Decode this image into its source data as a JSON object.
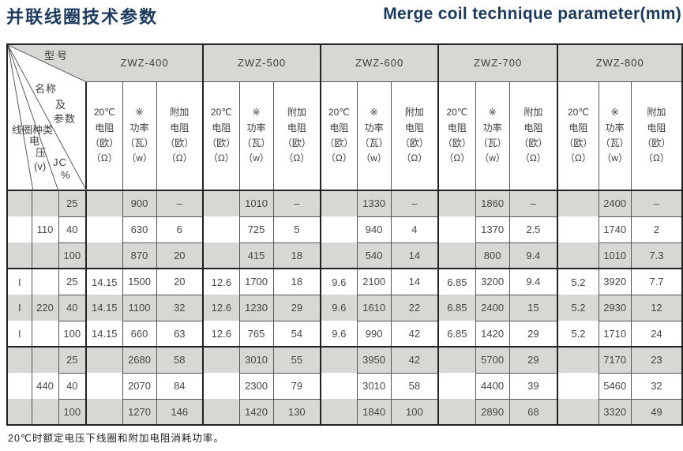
{
  "page": {
    "title_zh": "并联线圈技术参数",
    "title_en": "Merge coil technique parameter(mm)",
    "footnote": "20℃时额定电压下线圈和附加电阻消耗功率。"
  },
  "table": {
    "corner": {
      "model_label": "型号",
      "name_l1": "名称",
      "name_l2": "及",
      "name_l3": "参数",
      "coil_type_label": "线圈种类",
      "voltage_char1": "电",
      "voltage_char2": "压",
      "voltage_unit": "(v)",
      "jc_label": "JC",
      "jc_unit": "%"
    },
    "models": [
      "ZWZ-400",
      "ZWZ-500",
      "ZWZ-600",
      "ZWZ-700",
      "ZWZ-800"
    ],
    "sub_headers": [
      "20℃\n电阻\n（欧）\n（Ω）",
      "※\n功率\n（瓦）\n（w）",
      "附加\n电阻\n（欧）\n（Ω）"
    ],
    "bands": [
      {
        "voltage": "110",
        "coil_type": "",
        "rows": [
          {
            "jc": "25",
            "values": [
              {
                "res": "",
                "pow": "900",
                "add": "–"
              },
              {
                "res": "",
                "pow": "1010",
                "add": "–"
              },
              {
                "res": "",
                "pow": "1330",
                "add": "–"
              },
              {
                "res": "",
                "pow": "1860",
                "add": "–"
              },
              {
                "res": "",
                "pow": "2400",
                "add": "–"
              }
            ]
          },
          {
            "jc": "40",
            "values": [
              {
                "res": "",
                "pow": "630",
                "add": "6"
              },
              {
                "res": "",
                "pow": "725",
                "add": "5"
              },
              {
                "res": "",
                "pow": "940",
                "add": "4"
              },
              {
                "res": "",
                "pow": "1370",
                "add": "2.5"
              },
              {
                "res": "",
                "pow": "1740",
                "add": "2"
              }
            ]
          },
          {
            "jc": "100",
            "values": [
              {
                "res": "",
                "pow": "870",
                "add": "20"
              },
              {
                "res": "",
                "pow": "415",
                "add": "18"
              },
              {
                "res": "",
                "pow": "540",
                "add": "14"
              },
              {
                "res": "",
                "pow": "800",
                "add": "9.4"
              },
              {
                "res": "",
                "pow": "1010",
                "add": "7.3"
              }
            ]
          }
        ]
      },
      {
        "voltage": "220",
        "coil_type": "I",
        "rows": [
          {
            "jc": "25",
            "values": [
              {
                "res": "14.15",
                "pow": "1500",
                "add": "20"
              },
              {
                "res": "12.6",
                "pow": "1700",
                "add": "18"
              },
              {
                "res": "9.6",
                "pow": "2100",
                "add": "14"
              },
              {
                "res": "6.85",
                "pow": "3200",
                "add": "9.4"
              },
              {
                "res": "5.2",
                "pow": "3920",
                "add": "7.7"
              }
            ]
          },
          {
            "jc": "40",
            "values": [
              {
                "res": "14.15",
                "pow": "1100",
                "add": "32"
              },
              {
                "res": "12.6",
                "pow": "1230",
                "add": "29"
              },
              {
                "res": "9.6",
                "pow": "1610",
                "add": "22"
              },
              {
                "res": "6.85",
                "pow": "2400",
                "add": "15"
              },
              {
                "res": "5.2",
                "pow": "2930",
                "add": "12"
              }
            ]
          },
          {
            "jc": "100",
            "values": [
              {
                "res": "14.15",
                "pow": "660",
                "add": "63"
              },
              {
                "res": "12.6",
                "pow": "765",
                "add": "54"
              },
              {
                "res": "9.6",
                "pow": "990",
                "add": "42"
              },
              {
                "res": "6.85",
                "pow": "1420",
                "add": "29"
              },
              {
                "res": "5.2",
                "pow": "1710",
                "add": "24"
              }
            ]
          }
        ]
      },
      {
        "voltage": "440",
        "coil_type": "",
        "rows": [
          {
            "jc": "25",
            "values": [
              {
                "res": "",
                "pow": "2680",
                "add": "58"
              },
              {
                "res": "",
                "pow": "3010",
                "add": "55"
              },
              {
                "res": "",
                "pow": "3950",
                "add": "42"
              },
              {
                "res": "",
                "pow": "5700",
                "add": "29"
              },
              {
                "res": "",
                "pow": "7170",
                "add": "23"
              }
            ]
          },
          {
            "jc": "40",
            "values": [
              {
                "res": "",
                "pow": "2070",
                "add": "84"
              },
              {
                "res": "",
                "pow": "2300",
                "add": "79"
              },
              {
                "res": "",
                "pow": "3010",
                "add": "58"
              },
              {
                "res": "",
                "pow": "4400",
                "add": "39"
              },
              {
                "res": "",
                "pow": "5460",
                "add": "32"
              }
            ]
          },
          {
            "jc": "100",
            "values": [
              {
                "res": "",
                "pow": "1270",
                "add": "146"
              },
              {
                "res": "",
                "pow": "1420",
                "add": "130"
              },
              {
                "res": "",
                "pow": "1840",
                "add": "100"
              },
              {
                "res": "",
                "pow": "2890",
                "add": "68"
              },
              {
                "res": "",
                "pow": "3320",
                "add": "49"
              }
            ]
          }
        ]
      }
    ],
    "colors": {
      "title": "#1b3a5e",
      "row_shade": "#d8d7d3",
      "border_thick": "#222222",
      "border_thin": "#565656"
    }
  }
}
